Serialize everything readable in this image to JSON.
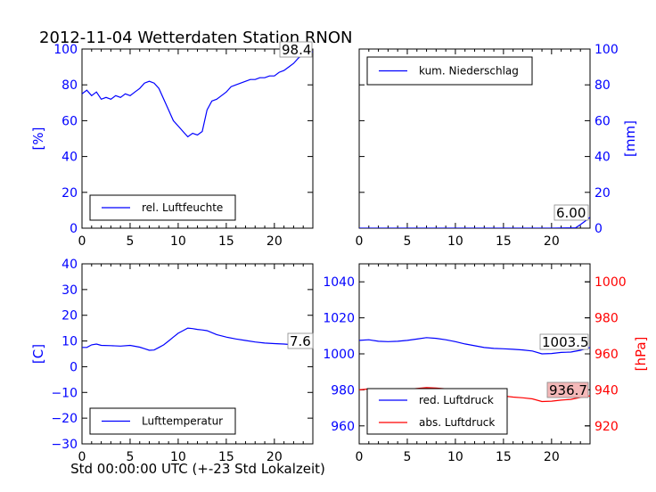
{
  "figure": {
    "title": "2012-11-04 Wetterdaten Station RNON",
    "xlabel": "Std 00:00:00 UTC (+-23 Std Lokalzeit)"
  },
  "colors": {
    "blue": "#0000ff",
    "red": "#ff0000",
    "label_box_pink": "#f4b8b8"
  },
  "chart_data": [
    {
      "id": "humidity",
      "type": "line",
      "ylabel": "[%]",
      "ylabel_side": "left",
      "xlim": [
        0,
        24
      ],
      "ylim": [
        0,
        100
      ],
      "xticks": [
        "0",
        "5",
        "10",
        "15",
        "20"
      ],
      "yticks": [
        "0",
        "20",
        "40",
        "60",
        "80",
        "100"
      ],
      "legend": {
        "placement": "lower-left"
      },
      "grid": false,
      "series": [
        {
          "name": "rel. Luftfeuchte",
          "color": "#0000ff",
          "x": [
            0,
            0.5,
            1,
            1.5,
            2,
            2.5,
            3,
            3.5,
            4,
            4.5,
            5,
            5.5,
            6,
            6.5,
            7,
            7.5,
            8,
            8.5,
            9,
            9.5,
            10,
            10.5,
            11,
            11.5,
            12,
            12.5,
            13,
            13.5,
            14,
            14.5,
            15,
            15.5,
            16,
            16.5,
            17,
            17.5,
            18,
            18.5,
            19,
            19.5,
            20,
            20.5,
            21,
            21.5,
            22,
            22.5,
            23,
            23.5,
            24
          ],
          "y": [
            75,
            77,
            74,
            76,
            72,
            73,
            72,
            74,
            73,
            75,
            74,
            76,
            78,
            81,
            82,
            81,
            78,
            72,
            66,
            60,
            57,
            54,
            51,
            53,
            52,
            54,
            66,
            71,
            72,
            74,
            76,
            79,
            80,
            81,
            82,
            83,
            83,
            84,
            84,
            85,
            85,
            87,
            88,
            90,
            92,
            95,
            97,
            98,
            98.4
          ]
        }
      ],
      "end_label": "98.4"
    },
    {
      "id": "precip",
      "type": "line",
      "ylabel": "[mm]",
      "ylabel_side": "right",
      "xlim": [
        0,
        24
      ],
      "ylim": [
        0,
        100
      ],
      "xticks": [
        "0",
        "5",
        "10",
        "15",
        "20"
      ],
      "yticks": [
        "0",
        "20",
        "40",
        "60",
        "80",
        "100"
      ],
      "legend": {
        "placement": "upper-left"
      },
      "grid": false,
      "series": [
        {
          "name": "kum. Niederschlag",
          "color": "#0000ff",
          "x": [
            0,
            5,
            10,
            15,
            20,
            22.5,
            23,
            23.5,
            24
          ],
          "y": [
            0,
            0,
            0,
            0,
            0,
            0.2,
            2,
            4,
            6
          ]
        }
      ],
      "end_label": "6.00"
    },
    {
      "id": "temperature",
      "type": "line",
      "ylabel": "[C]",
      "ylabel_side": "left",
      "xlim": [
        0,
        24
      ],
      "ylim": [
        -30,
        40
      ],
      "xticks": [
        "0",
        "5",
        "10",
        "15",
        "20"
      ],
      "yticks": [
        "−30",
        "−20",
        "−10",
        "0",
        "10",
        "20",
        "30",
        "40"
      ],
      "ytick_values": [
        -30,
        -20,
        -10,
        0,
        10,
        20,
        30,
        40
      ],
      "legend": {
        "placement": "lower-left"
      },
      "grid": false,
      "series": [
        {
          "name": "Lufttemperatur",
          "color": "#0000ff",
          "x": [
            0,
            0.5,
            1,
            1.5,
            2,
            3,
            4,
            5,
            6,
            6.5,
            7,
            7.5,
            8,
            8.5,
            9,
            9.5,
            10,
            10.5,
            11,
            11.5,
            12,
            12.5,
            13,
            14,
            15,
            16,
            17,
            18,
            19,
            20,
            21,
            22,
            23,
            24
          ],
          "y": [
            7.5,
            7.5,
            8.5,
            8.8,
            8.3,
            8.2,
            8.0,
            8.3,
            7.6,
            7.0,
            6.4,
            6.5,
            7.5,
            8.5,
            10,
            11.5,
            13,
            14,
            15,
            14.8,
            14.5,
            14.3,
            14.0,
            12.5,
            11.5,
            10.8,
            10.2,
            9.6,
            9.2,
            9.0,
            8.8,
            8.5,
            8.0,
            7.6
          ]
        }
      ],
      "end_label": "7.6"
    },
    {
      "id": "pressure",
      "type": "line",
      "ylabel": "[hPa]",
      "ylabel_side": "right",
      "xlim": [
        0,
        24
      ],
      "ylim": [
        950,
        1050
      ],
      "ylim_right": [
        910,
        1010
      ],
      "xticks": [
        "0",
        "5",
        "10",
        "15",
        "20"
      ],
      "yticks": [
        "960",
        "980",
        "1000",
        "1020",
        "1040"
      ],
      "ytick_values": [
        960,
        980,
        1000,
        1020,
        1040
      ],
      "yticks_right": [
        "920",
        "940",
        "960",
        "980",
        "1000"
      ],
      "ytick_values_right": [
        920,
        940,
        960,
        980,
        1000
      ],
      "legend": {
        "placement": "lower-left"
      },
      "grid": false,
      "series": [
        {
          "name": "red. Luftdruck",
          "axis": "left",
          "color": "#0000ff",
          "x": [
            0,
            1,
            2,
            3,
            4,
            5,
            6,
            7,
            8,
            9,
            10,
            11,
            12,
            13,
            14,
            15,
            16,
            17,
            18,
            19,
            20,
            21,
            22,
            23,
            24
          ],
          "y": [
            1007.5,
            1007.8,
            1007.0,
            1006.8,
            1007.0,
            1007.5,
            1008.2,
            1009.0,
            1008.6,
            1007.8,
            1006.8,
            1005.5,
            1004.5,
            1003.5,
            1003.0,
            1002.8,
            1002.5,
            1002.2,
            1001.6,
            1000.0,
            1000.2,
            1000.8,
            1001.0,
            1002.0,
            1003.5
          ]
        },
        {
          "name": "abs. Luftdruck",
          "axis": "right",
          "color": "#ff0000",
          "x": [
            0,
            1,
            2,
            3,
            4,
            5,
            6,
            7,
            8,
            9,
            10,
            11,
            12,
            13,
            14,
            15,
            16,
            17,
            18,
            19,
            20,
            21,
            22,
            23,
            24
          ],
          "y": [
            940.0,
            940.5,
            940.0,
            939.8,
            940.0,
            940.3,
            940.8,
            941.3,
            941.0,
            940.6,
            940.0,
            939.3,
            938.5,
            937.7,
            937.0,
            936.6,
            936.0,
            935.6,
            935.0,
            933.5,
            933.7,
            934.3,
            934.7,
            935.8,
            936.7
          ]
        }
      ],
      "end_labels": [
        "1003.5",
        "936.7"
      ]
    }
  ]
}
